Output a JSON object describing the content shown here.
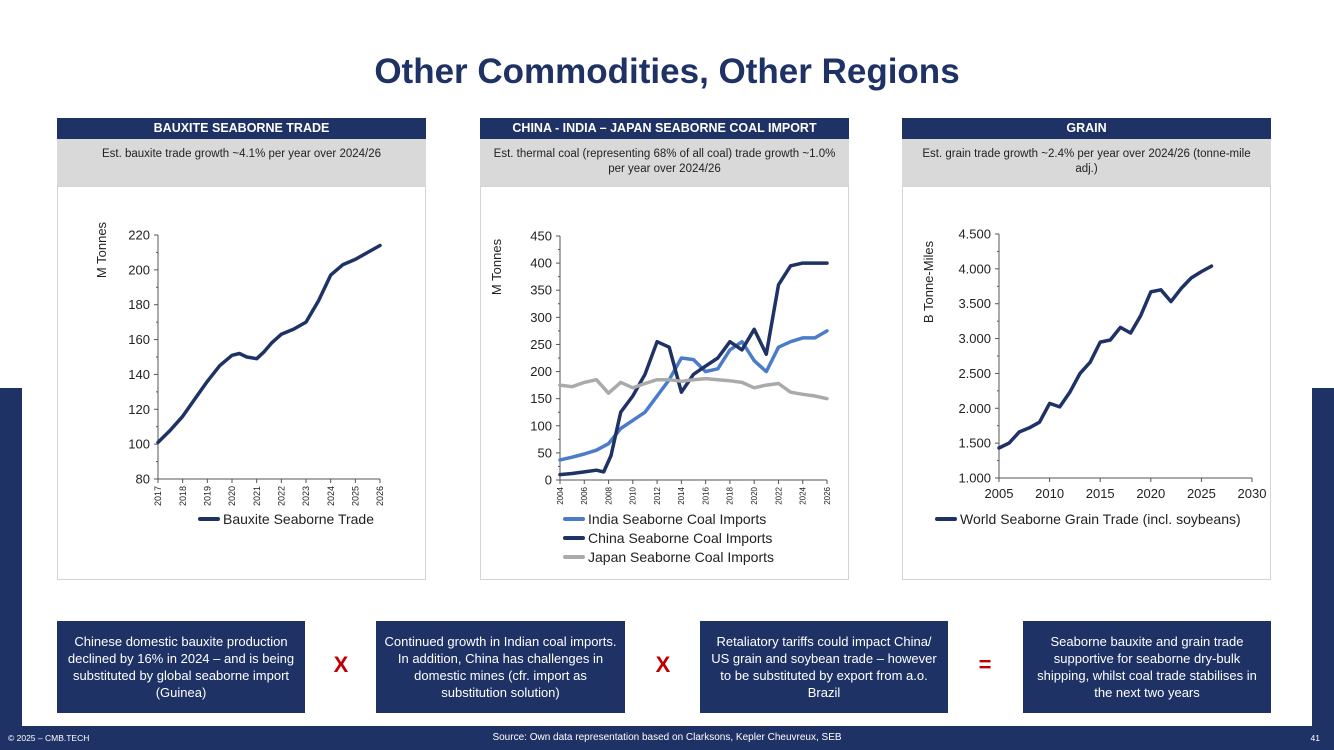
{
  "title": "Other Commodities, Other Regions",
  "panels": [
    {
      "heading": "BAUXITE SEABORNE TRADE",
      "subtitle": "Est. bauxite trade growth ~4.1% per year over 2024/26"
    },
    {
      "heading": "CHINA - INDIA – JAPAN SEABORNE COAL IMPORT",
      "subtitle": "Est. thermal coal (representing 68% of all coal) trade growth ~1.0% per year over 2024/26"
    },
    {
      "heading": "GRAIN",
      "subtitle": "Est. grain trade growth ~2.4% per year over 2024/26 (tonne-mile adj.)"
    }
  ],
  "chart_data": [
    {
      "type": "line",
      "ylabel": "M Tonnes",
      "ylim": [
        80,
        220
      ],
      "yticks": [
        "80",
        "100",
        "120",
        "140",
        "160",
        "180",
        "200",
        "220"
      ],
      "xlim": [
        2017,
        2026
      ],
      "xticks": [
        "2017",
        "2018",
        "2019",
        "2020",
        "2021",
        "2022",
        "2023",
        "2024",
        "2025",
        "2026"
      ],
      "series": [
        {
          "name": "Bauxite Seaborne Trade",
          "color": "#1f3266",
          "x": [
            2017,
            2017.5,
            2018,
            2018.5,
            2019,
            2019.5,
            2020,
            2020.3,
            2020.6,
            2021,
            2021.3,
            2021.6,
            2022,
            2022.5,
            2023,
            2023.5,
            2024,
            2024.5,
            2025,
            2025.5,
            2026
          ],
          "y": [
            101,
            108,
            116,
            126,
            136,
            145,
            151,
            152,
            150,
            149,
            153,
            158,
            163,
            166,
            170,
            182,
            197,
            203,
            206,
            210,
            214
          ]
        }
      ]
    },
    {
      "type": "line",
      "ylabel": "M Tonnes",
      "ylim": [
        0,
        450
      ],
      "yticks": [
        "0",
        "50",
        "100",
        "150",
        "200",
        "250",
        "300",
        "350",
        "400",
        "450"
      ],
      "xlim": [
        2004,
        2026
      ],
      "xticks": [
        "2004",
        "2006",
        "2008",
        "2010",
        "2012",
        "2014",
        "2016",
        "2018",
        "2020",
        "2022",
        "2024",
        "2026"
      ],
      "series": [
        {
          "name": "India Seaborne Coal Imports",
          "color": "#4a7cc9",
          "x": [
            2004,
            2005,
            2006,
            2007,
            2008,
            2009,
            2010,
            2011,
            2012,
            2013,
            2014,
            2015,
            2016,
            2017,
            2018,
            2019,
            2020,
            2021,
            2022,
            2023,
            2024,
            2025,
            2026
          ],
          "y": [
            37,
            42,
            48,
            55,
            67,
            95,
            110,
            125,
            155,
            185,
            225,
            222,
            200,
            205,
            240,
            255,
            220,
            200,
            245,
            255,
            262,
            262,
            275
          ]
        },
        {
          "name": "China Seaborne Coal Imports",
          "color": "#1f3266",
          "x": [
            2004,
            2005,
            2006,
            2007,
            2007.6,
            2008.2,
            2009,
            2010,
            2011,
            2012,
            2013,
            2014,
            2015,
            2016,
            2017,
            2018,
            2019,
            2020,
            2021,
            2022,
            2023,
            2024,
            2025,
            2026
          ],
          "y": [
            10,
            12,
            15,
            18,
            15,
            45,
            125,
            155,
            195,
            255,
            245,
            162,
            195,
            210,
            225,
            255,
            240,
            278,
            232,
            360,
            395,
            400,
            400,
            400
          ]
        },
        {
          "name": "Japan Seaborne Coal Imports",
          "color": "#aaaaaa",
          "x": [
            2004,
            2005,
            2006,
            2007,
            2008,
            2009,
            2010,
            2011,
            2012,
            2013,
            2014,
            2015,
            2016,
            2017,
            2018,
            2019,
            2020,
            2021,
            2022,
            2023,
            2024,
            2025,
            2026
          ],
          "y": [
            175,
            172,
            180,
            185,
            160,
            180,
            170,
            178,
            185,
            185,
            182,
            185,
            187,
            185,
            183,
            180,
            170,
            175,
            178,
            162,
            158,
            155,
            150
          ]
        }
      ]
    },
    {
      "type": "line",
      "ylabel": "B Tonne-Miles",
      "ylim": [
        1000,
        4500
      ],
      "yticks": [
        "1.000",
        "1.500",
        "2.000",
        "2.500",
        "3.000",
        "3.500",
        "4.000",
        "4.500"
      ],
      "xlim": [
        2005,
        2030
      ],
      "xticks": [
        "2005",
        "2010",
        "2015",
        "2020",
        "2025",
        "2030"
      ],
      "series": [
        {
          "name": "World Seaborne Grain Trade (incl. soybeans)",
          "color": "#1f3266",
          "x": [
            2005,
            2006,
            2007,
            2008,
            2009,
            2010,
            2011,
            2012,
            2013,
            2014,
            2015,
            2016,
            2017,
            2018,
            2019,
            2020,
            2021,
            2022,
            2023,
            2024,
            2025,
            2026
          ],
          "y": [
            1430,
            1500,
            1660,
            1720,
            1800,
            2070,
            2020,
            2230,
            2500,
            2660,
            2950,
            2980,
            3160,
            3080,
            3330,
            3670,
            3700,
            3530,
            3720,
            3870,
            3960,
            4040
          ]
        }
      ]
    }
  ],
  "bottom_boxes": [
    "Chinese domestic bauxite production declined by 16% in 2024 – and is being substituted by global seaborne import (Guinea)",
    "Continued growth in Indian coal imports. In addition, China has challenges in domestic mines (cfr. import as substitution solution)",
    "Retaliatory tariffs could impact China/ US grain and soybean trade – however  to be substituted by export from a.o. Brazil",
    "Seaborne bauxite and grain trade supportive for seaborne dry-bulk shipping, whilst coal trade stabilises in the next two years"
  ],
  "operators": [
    "X",
    "X",
    "="
  ],
  "footer": {
    "copyright": "© 2025 – CMB.TECH",
    "source": "Source:  Own data representation based on Clarksons, Kepler Cheuvreux, SEB",
    "page": "41"
  }
}
